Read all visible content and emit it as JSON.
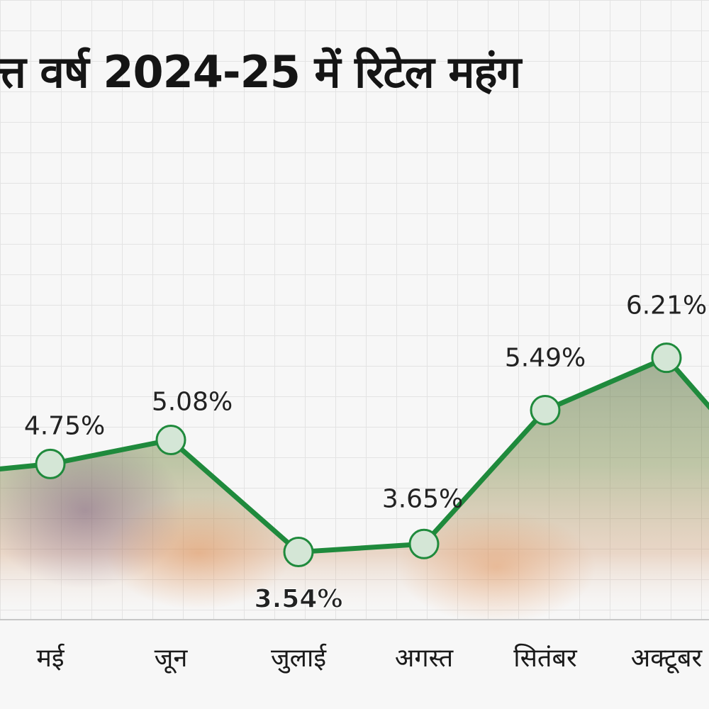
{
  "title": "त्त वर्ष 2024-25 में रिटेल महंग",
  "colors": {
    "line": "#1f8a3c",
    "marker_fill": "#d4e6d6",
    "marker_stroke": "#1f8a3c",
    "label_text": "#222222"
  },
  "chart_data": {
    "type": "line",
    "title": "त्त वर्ष 2024-25 में रिटेल महंग",
    "categories": [
      "मई",
      "जून",
      "जुलाई",
      "अगस्त",
      "सितंबर",
      "अक्टूबर"
    ],
    "series": [
      {
        "values": [
          4.75,
          5.08,
          3.54,
          3.65,
          5.49,
          6.21
        ],
        "labels": [
          "4.75%",
          "5.08%",
          "3.54%",
          "3.65%",
          "5.49%",
          "6.21%"
        ]
      }
    ],
    "ylim": [
      2.6,
      6.9
    ],
    "grid": true,
    "legend": "none"
  }
}
